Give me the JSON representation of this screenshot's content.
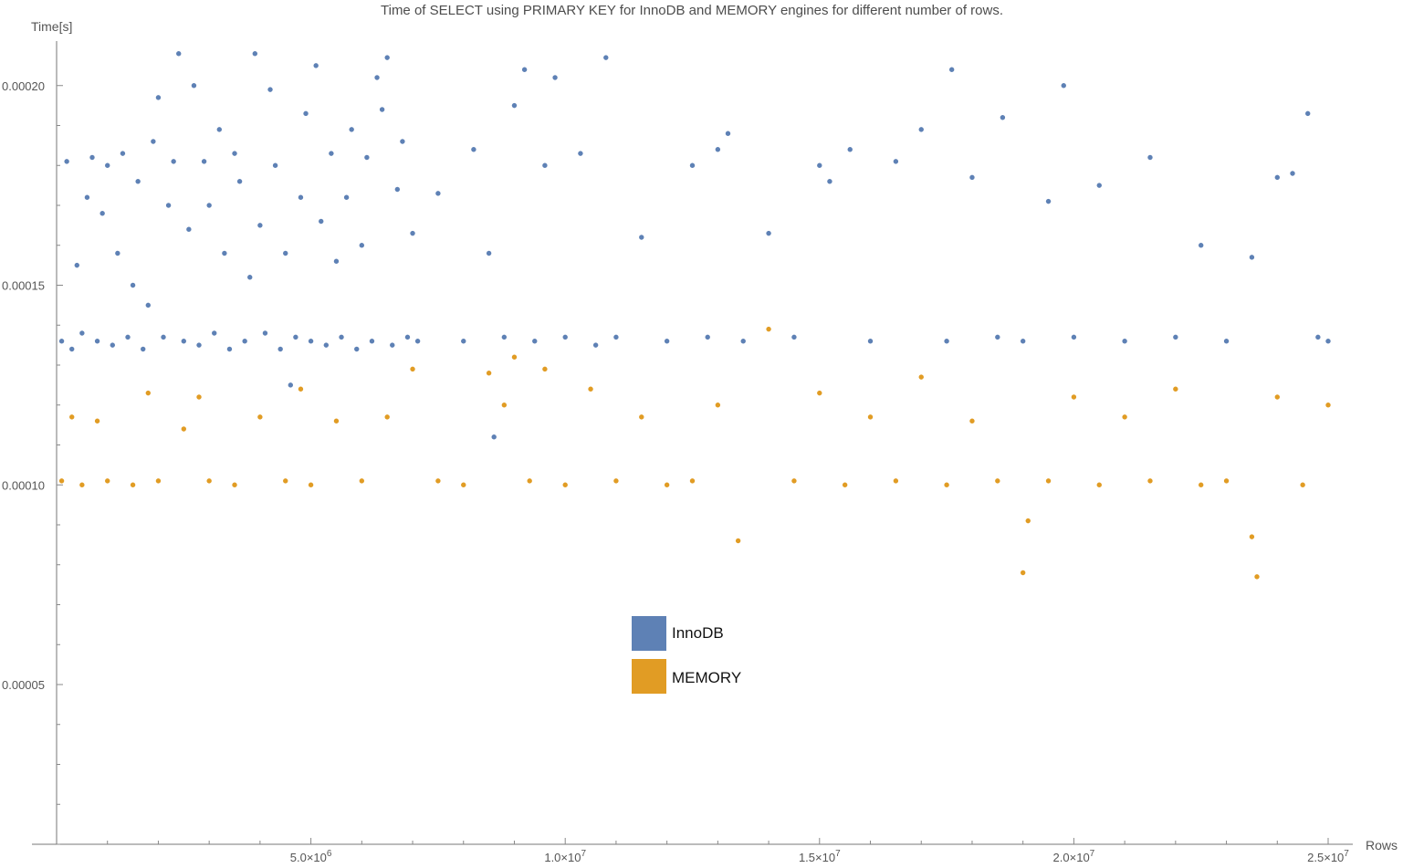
{
  "chart_data": {
    "type": "scatter",
    "title": "Time of SELECT using PRIMARY KEY for InnoDB and MEMORY engines for different number of rows.",
    "xlabel": "Rows",
    "ylabel": "Time[s]",
    "xlim": [
      0,
      25000000
    ],
    "ylim": [
      1e-05,
      0.00021
    ],
    "x_ticks": [
      {
        "value": 5000000,
        "mantissa": "5.0",
        "exponent": "6"
      },
      {
        "value": 10000000,
        "mantissa": "1.0",
        "exponent": "7"
      },
      {
        "value": 15000000,
        "mantissa": "1.5",
        "exponent": "7"
      },
      {
        "value": 20000000,
        "mantissa": "2.0",
        "exponent": "7"
      },
      {
        "value": 25000000,
        "mantissa": "2.5",
        "exponent": "7"
      }
    ],
    "x_tick_base": "×10",
    "y_ticks": [
      {
        "value": 5e-05,
        "label": "0.00005"
      },
      {
        "value": 0.0001,
        "label": "0.00010"
      },
      {
        "value": 0.00015,
        "label": "0.00015"
      },
      {
        "value": 0.0002,
        "label": "0.00020"
      }
    ],
    "grid": false,
    "legend_position": "center",
    "series": [
      {
        "name": "InnoDB",
        "color": "#5e81b5",
        "points": [
          [
            100000,
            0.000136
          ],
          [
            200000,
            0.000181
          ],
          [
            300000,
            0.000134
          ],
          [
            400000,
            0.000155
          ],
          [
            500000,
            0.000138
          ],
          [
            600000,
            0.000172
          ],
          [
            700000,
            0.000182
          ],
          [
            800000,
            0.000136
          ],
          [
            900000,
            0.000168
          ],
          [
            1000000,
            0.00018
          ],
          [
            1100000,
            0.000135
          ],
          [
            1200000,
            0.000158
          ],
          [
            1300000,
            0.000183
          ],
          [
            1400000,
            0.000137
          ],
          [
            1500000,
            0.00015
          ],
          [
            1600000,
            0.000176
          ],
          [
            1700000,
            0.000134
          ],
          [
            1800000,
            0.000145
          ],
          [
            1900000,
            0.000186
          ],
          [
            2000000,
            0.000197
          ],
          [
            2100000,
            0.000137
          ],
          [
            2200000,
            0.00017
          ],
          [
            2300000,
            0.000181
          ],
          [
            2400000,
            0.000208
          ],
          [
            2500000,
            0.000136
          ],
          [
            2600000,
            0.000164
          ],
          [
            2700000,
            0.0002
          ],
          [
            2800000,
            0.000135
          ],
          [
            2900000,
            0.000181
          ],
          [
            3000000,
            0.00017
          ],
          [
            3100000,
            0.000138
          ],
          [
            3200000,
            0.000189
          ],
          [
            3300000,
            0.000158
          ],
          [
            3400000,
            0.000134
          ],
          [
            3500000,
            0.000183
          ],
          [
            3600000,
            0.000176
          ],
          [
            3700000,
            0.000136
          ],
          [
            3800000,
            0.000152
          ],
          [
            3900000,
            0.000208
          ],
          [
            4000000,
            0.000165
          ],
          [
            4100000,
            0.000138
          ],
          [
            4200000,
            0.000199
          ],
          [
            4300000,
            0.00018
          ],
          [
            4400000,
            0.000134
          ],
          [
            4500000,
            0.000158
          ],
          [
            4600000,
            0.000125
          ],
          [
            4700000,
            0.000137
          ],
          [
            4800000,
            0.000172
          ],
          [
            4900000,
            0.000193
          ],
          [
            5000000,
            0.000136
          ],
          [
            5100000,
            0.000205
          ],
          [
            5200000,
            0.000166
          ],
          [
            5300000,
            0.000135
          ],
          [
            5400000,
            0.000183
          ],
          [
            5500000,
            0.000156
          ],
          [
            5600000,
            0.000137
          ],
          [
            5700000,
            0.000172
          ],
          [
            5800000,
            0.000189
          ],
          [
            5900000,
            0.000134
          ],
          [
            6000000,
            0.00016
          ],
          [
            6100000,
            0.000182
          ],
          [
            6200000,
            0.000136
          ],
          [
            6300000,
            0.000202
          ],
          [
            6400000,
            0.000194
          ],
          [
            6500000,
            0.000207
          ],
          [
            6600000,
            0.000135
          ],
          [
            6700000,
            0.000174
          ],
          [
            6800000,
            0.000186
          ],
          [
            6900000,
            0.000137
          ],
          [
            7000000,
            0.000163
          ],
          [
            7100000,
            0.000136
          ],
          [
            7500000,
            0.000173
          ],
          [
            8000000,
            0.000136
          ],
          [
            8200000,
            0.000184
          ],
          [
            8500000,
            0.000158
          ],
          [
            8600000,
            0.000112
          ],
          [
            8800000,
            0.000137
          ],
          [
            9000000,
            0.000195
          ],
          [
            9200000,
            0.000204
          ],
          [
            9400000,
            0.000136
          ],
          [
            9600000,
            0.00018
          ],
          [
            9800000,
            0.000202
          ],
          [
            10000000,
            0.000137
          ],
          [
            10300000,
            0.000183
          ],
          [
            10600000,
            0.000135
          ],
          [
            10800000,
            0.000207
          ],
          [
            11000000,
            0.000137
          ],
          [
            11500000,
            0.000162
          ],
          [
            12000000,
            0.000136
          ],
          [
            12500000,
            0.00018
          ],
          [
            12800000,
            0.000137
          ],
          [
            13000000,
            0.000184
          ],
          [
            13200000,
            0.000188
          ],
          [
            13500000,
            0.000136
          ],
          [
            14000000,
            0.000163
          ],
          [
            14500000,
            0.000137
          ],
          [
            15000000,
            0.00018
          ],
          [
            15200000,
            0.000176
          ],
          [
            15600000,
            0.000184
          ],
          [
            16000000,
            0.000136
          ],
          [
            16500000,
            0.000181
          ],
          [
            17000000,
            0.000189
          ],
          [
            17500000,
            0.000136
          ],
          [
            17600000,
            0.000204
          ],
          [
            18000000,
            0.000177
          ],
          [
            18500000,
            0.000137
          ],
          [
            18600000,
            0.000192
          ],
          [
            19000000,
            0.000136
          ],
          [
            19500000,
            0.000171
          ],
          [
            19800000,
            0.0002
          ],
          [
            20000000,
            0.000137
          ],
          [
            20500000,
            0.000175
          ],
          [
            21000000,
            0.000136
          ],
          [
            21500000,
            0.000182
          ],
          [
            22000000,
            0.000137
          ],
          [
            22500000,
            0.00016
          ],
          [
            23000000,
            0.000136
          ],
          [
            23500000,
            0.000157
          ],
          [
            24000000,
            0.000177
          ],
          [
            24300000,
            0.000178
          ],
          [
            24600000,
            0.000193
          ],
          [
            24800000,
            0.000137
          ],
          [
            25000000,
            0.000136
          ]
        ]
      },
      {
        "name": "MEMORY",
        "color": "#e19c24",
        "points": [
          [
            100000,
            0.000101
          ],
          [
            300000,
            0.000117
          ],
          [
            500000,
            0.0001
          ],
          [
            800000,
            0.000116
          ],
          [
            1000000,
            0.000101
          ],
          [
            1500000,
            0.0001
          ],
          [
            1800000,
            0.000123
          ],
          [
            2000000,
            0.000101
          ],
          [
            2500000,
            0.000114
          ],
          [
            2800000,
            0.000122
          ],
          [
            3000000,
            0.000101
          ],
          [
            3500000,
            0.0001
          ],
          [
            4000000,
            0.000117
          ],
          [
            4500000,
            0.000101
          ],
          [
            4800000,
            0.000124
          ],
          [
            5000000,
            0.0001
          ],
          [
            5500000,
            0.000116
          ],
          [
            6000000,
            0.000101
          ],
          [
            6500000,
            0.000117
          ],
          [
            7000000,
            0.000129
          ],
          [
            7500000,
            0.000101
          ],
          [
            8000000,
            0.0001
          ],
          [
            8500000,
            0.000128
          ],
          [
            8800000,
            0.00012
          ],
          [
            9000000,
            0.000132
          ],
          [
            9300000,
            0.000101
          ],
          [
            9600000,
            0.000129
          ],
          [
            10000000,
            0.0001
          ],
          [
            10500000,
            0.000124
          ],
          [
            11000000,
            0.000101
          ],
          [
            11500000,
            0.000117
          ],
          [
            12000000,
            0.0001
          ],
          [
            12500000,
            0.000101
          ],
          [
            13000000,
            0.00012
          ],
          [
            13400000,
            8.6e-05
          ],
          [
            14000000,
            0.000139
          ],
          [
            14500000,
            0.000101
          ],
          [
            15000000,
            0.000123
          ],
          [
            15500000,
            0.0001
          ],
          [
            16000000,
            0.000117
          ],
          [
            16500000,
            0.000101
          ],
          [
            17000000,
            0.000127
          ],
          [
            17500000,
            0.0001
          ],
          [
            18000000,
            0.000116
          ],
          [
            18500000,
            0.000101
          ],
          [
            19000000,
            7.8e-05
          ],
          [
            19100000,
            9.1e-05
          ],
          [
            19500000,
            0.000101
          ],
          [
            20000000,
            0.000122
          ],
          [
            20500000,
            0.0001
          ],
          [
            21000000,
            0.000117
          ],
          [
            21500000,
            0.000101
          ],
          [
            22000000,
            0.000124
          ],
          [
            22500000,
            0.0001
          ],
          [
            23000000,
            0.000101
          ],
          [
            23500000,
            8.7e-05
          ],
          [
            23600000,
            7.7e-05
          ],
          [
            24000000,
            0.000122
          ],
          [
            24500000,
            0.0001
          ],
          [
            25000000,
            0.00012
          ]
        ]
      }
    ]
  }
}
